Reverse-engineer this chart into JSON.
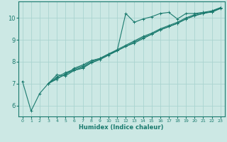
{
  "title": "",
  "xlabel": "Humidex (Indice chaleur)",
  "ylabel": "",
  "bg_color": "#cce8e4",
  "line_color": "#1a7a6e",
  "grid_color": "#aad4d0",
  "xlim": [
    -0.5,
    23.5
  ],
  "ylim": [
    5.5,
    10.75
  ],
  "xticks": [
    0,
    1,
    2,
    3,
    4,
    5,
    6,
    7,
    8,
    9,
    10,
    11,
    12,
    13,
    14,
    15,
    16,
    17,
    18,
    19,
    20,
    21,
    22,
    23
  ],
  "yticks": [
    6,
    7,
    8,
    9,
    10
  ],
  "lines": [
    {
      "x": [
        0,
        1,
        2,
        3,
        4,
        5,
        6,
        7,
        8,
        9,
        10,
        11,
        12,
        13,
        14,
        15,
        16,
        17,
        18,
        19,
        20,
        21,
        22,
        23
      ],
      "y": [
        7.1,
        5.75,
        6.55,
        7.0,
        7.25,
        7.4,
        7.7,
        7.85,
        8.05,
        8.15,
        8.35,
        8.5,
        10.2,
        9.8,
        9.95,
        10.05,
        10.2,
        10.25,
        9.95,
        10.2,
        10.2,
        10.25,
        10.25,
        10.45
      ]
    },
    {
      "x": [
        3,
        4,
        5,
        6,
        7,
        8,
        9,
        10,
        11,
        12,
        13,
        14,
        15,
        16,
        17,
        18,
        19,
        20,
        21,
        22,
        23
      ],
      "y": [
        7.0,
        7.4,
        7.35,
        7.6,
        7.7,
        7.95,
        8.1,
        8.3,
        8.5,
        8.7,
        8.85,
        9.05,
        9.25,
        9.45,
        9.6,
        9.75,
        9.95,
        10.1,
        10.2,
        10.3,
        10.45
      ]
    },
    {
      "x": [
        3,
        4,
        5,
        6,
        7,
        8,
        9,
        10,
        11,
        12,
        13,
        14,
        15,
        16,
        17,
        18,
        19,
        20,
        21,
        22,
        23
      ],
      "y": [
        7.0,
        7.3,
        7.5,
        7.65,
        7.8,
        8.0,
        8.15,
        8.35,
        8.55,
        8.75,
        8.95,
        9.15,
        9.3,
        9.5,
        9.65,
        9.8,
        10.0,
        10.15,
        10.25,
        10.32,
        10.47
      ]
    },
    {
      "x": [
        3,
        4,
        5,
        6,
        7,
        8,
        9,
        10,
        11,
        12,
        13,
        14,
        15,
        16,
        17,
        18,
        19,
        20,
        21,
        22,
        23
      ],
      "y": [
        7.0,
        7.2,
        7.45,
        7.6,
        7.75,
        7.95,
        8.1,
        8.3,
        8.5,
        8.7,
        8.9,
        9.1,
        9.25,
        9.45,
        9.6,
        9.75,
        9.95,
        10.1,
        10.2,
        10.27,
        10.42
      ]
    }
  ]
}
